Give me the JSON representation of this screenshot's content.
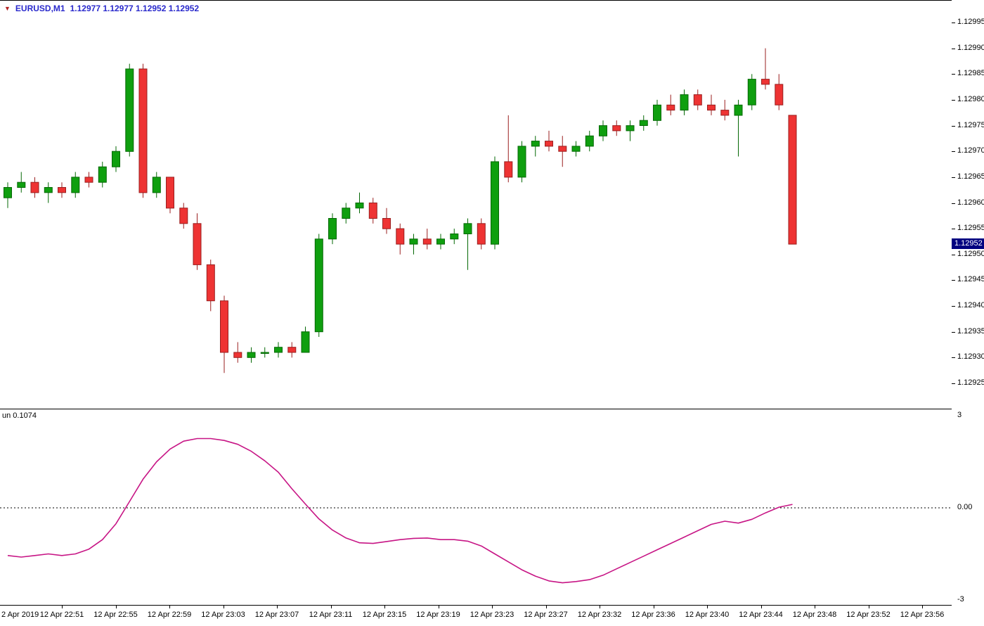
{
  "window": {
    "dropdown_icon": "▼",
    "symbol_label": "EURUSD,M1",
    "ohlc_values": "1.12977 1.12977 1.12952 1.12952"
  },
  "price_axis": {
    "labels": [
      "1.12995",
      "1.12990",
      "1.12985",
      "1.12980",
      "1.12975",
      "1.12970",
      "1.12965",
      "1.12960",
      "1.12955",
      "1.12950",
      "1.12945",
      "1.12940",
      "1.12935",
      "1.12930",
      "1.12925"
    ],
    "current_price": "1.12952"
  },
  "time_axis": {
    "labels": [
      "2 Apr 2019",
      "12 Apr 22:51",
      "12 Apr 22:55",
      "12 Apr 22:59",
      "12 Apr 23:03",
      "12 Apr 23:07",
      "12 Apr 23:11",
      "12 Apr 23:15",
      "12 Apr 23:19",
      "12 Apr 23:23",
      "12 Apr 23:27",
      "12 Apr 23:32",
      "12 Apr 23:36",
      "12 Apr 23:40",
      "12 Apr 23:44",
      "12 Apr 23:48",
      "12 Apr 23:52",
      "12 Apr 23:56"
    ]
  },
  "indicator": {
    "label": "un 0.1074",
    "scale_top": "3",
    "scale_zero": "0.00",
    "scale_bottom": "-3"
  },
  "colors": {
    "bull": "#0f9f0f",
    "bull_stroke": "#056805",
    "bear": "#ee3333",
    "bear_stroke": "#9a1f1f",
    "indicator_line": "#C71585",
    "price_tag_bg": "#000080",
    "price_tag_text": "#ffffff",
    "symbol_text": "#2929cc",
    "dropdown_icon_color": "#b22222",
    "axis_text": "#000000"
  },
  "chart_data": [
    {
      "type": "candlestick",
      "title": "EURUSD,M1",
      "ylabel": "price",
      "ylim": [
        1.12925,
        1.12995
      ],
      "price_base": 1.129,
      "price_point": 1e-05,
      "time_start": "22:47",
      "interval_minutes": 1,
      "note": "each entry is [open,high,low,close] in points above 1.129",
      "ohlc_points": [
        [
          61,
          64,
          59,
          63
        ],
        [
          63,
          66,
          62,
          64
        ],
        [
          64,
          65,
          61,
          62
        ],
        [
          62,
          64,
          60,
          63
        ],
        [
          63,
          64,
          61,
          62
        ],
        [
          62,
          66,
          61,
          65
        ],
        [
          65,
          66,
          63,
          64
        ],
        [
          64,
          68,
          63,
          67
        ],
        [
          67,
          71,
          66,
          70
        ],
        [
          70,
          87,
          69,
          86
        ],
        [
          86,
          87,
          61,
          62
        ],
        [
          62,
          66,
          61,
          65
        ],
        [
          65,
          65,
          58,
          59
        ],
        [
          59,
          60,
          55,
          56
        ],
        [
          56,
          58,
          47,
          48
        ],
        [
          48,
          49,
          39,
          41
        ],
        [
          41,
          42,
          27,
          31
        ],
        [
          31,
          33,
          29,
          30
        ],
        [
          30,
          32,
          29,
          31
        ],
        [
          31,
          32,
          30,
          31
        ],
        [
          31,
          33,
          30,
          32
        ],
        [
          32,
          33,
          30,
          31
        ],
        [
          31,
          36,
          31,
          35
        ],
        [
          35,
          54,
          34,
          53
        ],
        [
          53,
          58,
          52,
          57
        ],
        [
          57,
          60,
          56,
          59
        ],
        [
          59,
          62,
          58,
          60
        ],
        [
          60,
          61,
          56,
          57
        ],
        [
          57,
          59,
          54,
          55
        ],
        [
          55,
          56,
          50,
          52
        ],
        [
          52,
          54,
          50,
          53
        ],
        [
          53,
          55,
          51,
          52
        ],
        [
          52,
          54,
          51,
          53
        ],
        [
          53,
          55,
          52,
          54
        ],
        [
          54,
          57,
          47,
          56
        ],
        [
          56,
          57,
          51,
          52
        ],
        [
          52,
          69,
          51,
          68
        ],
        [
          68,
          77,
          64,
          65
        ],
        [
          65,
          72,
          64,
          71
        ],
        [
          71,
          73,
          69,
          72
        ],
        [
          72,
          74,
          70,
          71
        ],
        [
          71,
          73,
          67,
          70
        ],
        [
          70,
          72,
          69,
          71
        ],
        [
          71,
          74,
          70,
          73
        ],
        [
          73,
          76,
          72,
          75
        ],
        [
          75,
          76,
          73,
          74
        ],
        [
          74,
          76,
          72,
          75
        ],
        [
          75,
          77,
          74,
          76
        ],
        [
          76,
          80,
          75,
          79
        ],
        [
          79,
          81,
          77,
          78
        ],
        [
          78,
          82,
          77,
          81
        ],
        [
          81,
          82,
          78,
          79
        ],
        [
          79,
          81,
          77,
          78
        ],
        [
          78,
          80,
          76,
          77
        ],
        [
          77,
          80,
          69,
          79
        ],
        [
          79,
          85,
          78,
          84
        ],
        [
          84,
          90,
          82,
          83
        ],
        [
          83,
          85,
          78,
          79
        ],
        [
          77,
          77,
          52,
          52
        ]
      ]
    },
    {
      "type": "line",
      "title": "un",
      "current_value": 0.1074,
      "ylim": [
        -3,
        3
      ],
      "zero_line": 0.0,
      "legend_position": "top-left",
      "values": [
        -1.5,
        -1.55,
        -1.5,
        -1.45,
        -1.5,
        -1.45,
        -1.3,
        -1.0,
        -0.5,
        0.2,
        0.9,
        1.45,
        1.85,
        2.1,
        2.18,
        2.18,
        2.12,
        2.0,
        1.78,
        1.48,
        1.12,
        0.6,
        0.12,
        -0.35,
        -0.7,
        -0.95,
        -1.1,
        -1.12,
        -1.06,
        -1.0,
        -0.96,
        -0.95,
        -1.0,
        -1.0,
        -1.05,
        -1.2,
        -1.45,
        -1.7,
        -1.95,
        -2.15,
        -2.3,
        -2.36,
        -2.32,
        -2.26,
        -2.12,
        -1.92,
        -1.72,
        -1.52,
        -1.32,
        -1.12,
        -0.92,
        -0.72,
        -0.52,
        -0.42,
        -0.48,
        -0.36,
        -0.16,
        0.02,
        0.1074
      ]
    }
  ]
}
